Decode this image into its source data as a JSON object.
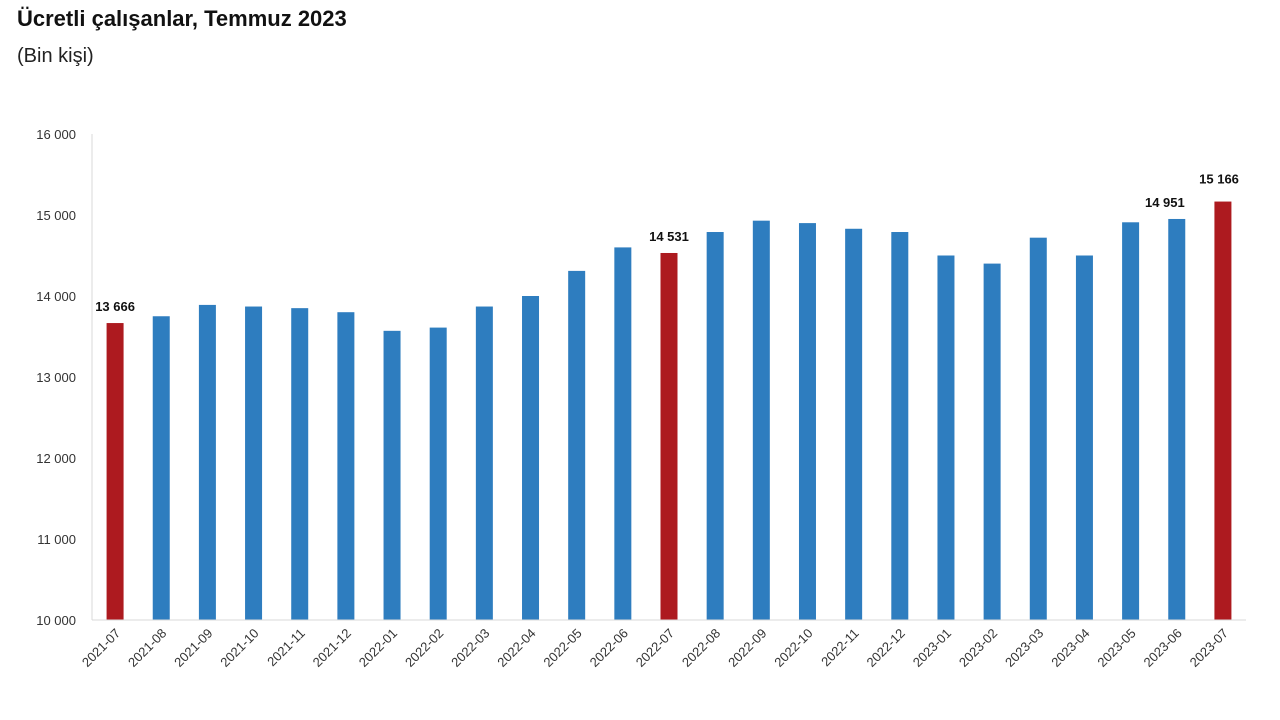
{
  "header": {
    "title": "Ücretli çalışanlar, Temmuz 2023",
    "subtitle": "(Bin kişi)"
  },
  "chart_data": {
    "type": "bar",
    "title": "Ücretli çalışanlar, Temmuz 2023",
    "subtitle": "(Bin kişi)",
    "xlabel": "",
    "ylabel": "",
    "ylim": [
      10000,
      16000
    ],
    "yticks": [
      10000,
      11000,
      12000,
      13000,
      14000,
      15000,
      16000
    ],
    "ytick_labels": [
      "10 000",
      "11 000",
      "12 000",
      "13 000",
      "14 000",
      "15 000",
      "16 000"
    ],
    "grid": false,
    "categories": [
      "2021-07",
      "2021-08",
      "2021-09",
      "2021-10",
      "2021-11",
      "2021-12",
      "2022-01",
      "2022-02",
      "2022-03",
      "2022-04",
      "2022-05",
      "2022-06",
      "2022-07",
      "2022-08",
      "2022-09",
      "2022-10",
      "2022-11",
      "2022-12",
      "2023-01",
      "2023-02",
      "2023-03",
      "2023-04",
      "2023-05",
      "2023-06",
      "2023-07"
    ],
    "values": [
      13666,
      13750,
      13890,
      13870,
      13850,
      13800,
      13570,
      13610,
      13870,
      14000,
      14310,
      14600,
      14531,
      14790,
      14930,
      14900,
      14830,
      14790,
      14500,
      14400,
      14720,
      14500,
      14910,
      14951,
      15166
    ],
    "highlighted": [
      "2021-07",
      "2022-07",
      "2023-07"
    ],
    "data_labels": [
      {
        "category": "2021-07",
        "text": "13 666"
      },
      {
        "category": "2022-07",
        "text": "14 531"
      },
      {
        "category": "2023-06",
        "text": "14 951"
      },
      {
        "category": "2023-07",
        "text": "15 166"
      }
    ],
    "colors": {
      "bar": "#2e7dbf",
      "highlight": "#ad1a1f",
      "axis": "#d9d9d9"
    }
  }
}
